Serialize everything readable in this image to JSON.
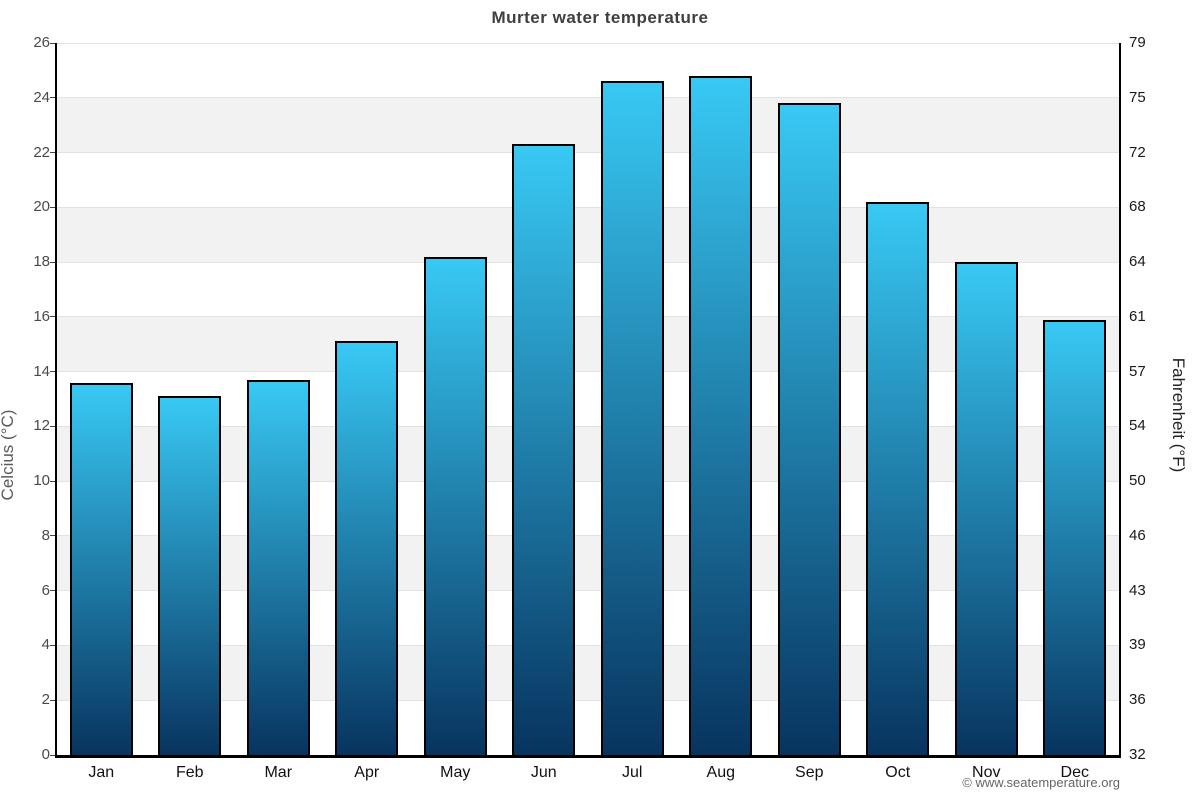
{
  "title": "Murter water temperature",
  "footer": "© www.seatemperature.org",
  "axes": {
    "left_title": "Celcius (°C)",
    "right_title": "Fahrenheit (°F)"
  },
  "chart_data": {
    "type": "bar",
    "title": "Murter water temperature",
    "categories": [
      "Jan",
      "Feb",
      "Mar",
      "Apr",
      "May",
      "Jun",
      "Jul",
      "Aug",
      "Sep",
      "Oct",
      "Nov",
      "Dec"
    ],
    "values": [
      13.6,
      13.1,
      13.7,
      15.1,
      18.2,
      22.3,
      24.6,
      24.8,
      23.8,
      20.2,
      18.0,
      15.9
    ],
    "xlabel": "",
    "ylabel": "Celcius (°C)",
    "ylabel_right": "Fahrenheit (°F)",
    "ylim": [
      0,
      26
    ],
    "ytick_step": 2,
    "celsius_ticks": [
      26,
      24,
      22,
      20,
      18,
      16,
      14,
      12,
      10,
      8,
      6,
      4,
      2,
      0
    ],
    "fahrenheit_ticks": [
      79,
      75,
      72,
      68,
      64,
      61,
      57,
      54,
      50,
      46,
      43,
      39,
      36,
      32
    ],
    "legend": "none",
    "grid": "horizontal-bands",
    "colors": {
      "bar_gradient_top": "#38c9f4",
      "bar_gradient_bottom": "#07345f",
      "bar_border": "#000000",
      "band_gray": "#f2f2f2",
      "band_white": "#ffffff",
      "gridline": "#e2e2e2",
      "axis_line": "#000000",
      "tick_mark": "#444444",
      "title_text": "#3f3f3f",
      "left_tick_text": "#4a4a4a",
      "right_tick_text": "#1a1a1a",
      "month_text": "#111111",
      "footer_text": "#666666"
    }
  }
}
